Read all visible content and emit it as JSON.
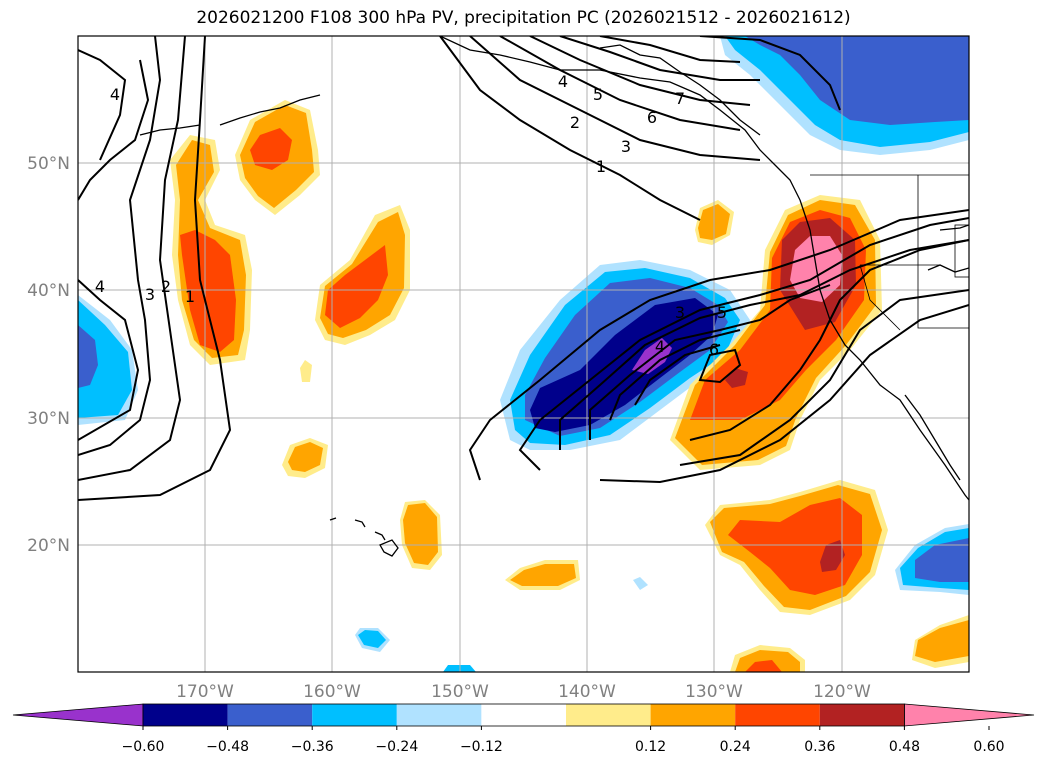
{
  "title": "2026021200 F108 300 hPa PV, precipitation PC (2026021512 - 2026021612)",
  "lat_labels": [
    "50°N",
    "40°N",
    "30°N",
    "20°N"
  ],
  "lon_labels": [
    "170°W",
    "160°W",
    "150°W",
    "140°W",
    "130°W",
    "120°W"
  ],
  "pv_contour_labels": [
    "1",
    "2",
    "3",
    "4",
    "5",
    "6",
    "7",
    "1",
    "2",
    "3",
    "4",
    "3",
    "4",
    "5",
    "6",
    "4"
  ],
  "colorbar": {
    "labels": [
      "−0.60",
      "−0.48",
      "−0.36",
      "−0.24",
      "−0.12",
      "0.12",
      "0.24",
      "0.36",
      "0.48",
      "0.60"
    ],
    "colors": [
      "#9932cc",
      "#00008b",
      "#3a5fcd",
      "#00bfff",
      "#b0e2ff",
      "#ffffff",
      "#ffec8b",
      "#ffa500",
      "#ff4500",
      "#b22222",
      "#ff82ab"
    ]
  },
  "colors": {
    "pc_strong_neg": "#00008b",
    "pc_neg": "#3a5fcd",
    "pc_mid_neg": "#00bfff",
    "pc_weak_neg": "#b0e2ff",
    "pc_weak_pos": "#ffec8b",
    "pc_pos": "#ffa500",
    "pc_mid_pos": "#ff4500",
    "pc_strong_pos": "#b22222",
    "pc_max_pos": "#ff82ab",
    "pc_min_neg": "#9932cc"
  }
}
